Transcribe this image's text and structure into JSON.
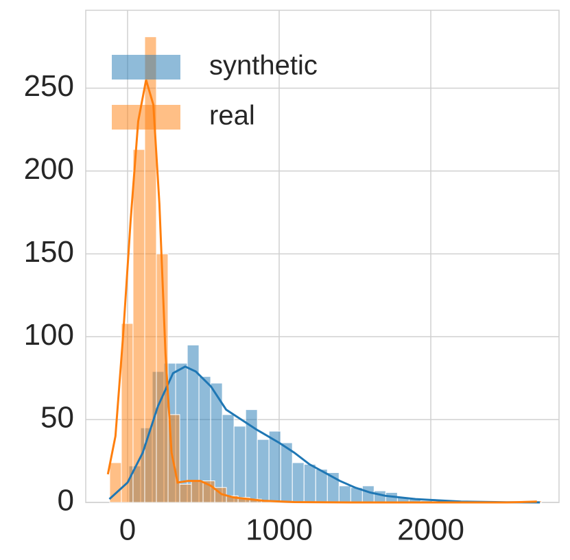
{
  "chart_data": {
    "type": "histogram",
    "xlim": [
      -276,
      2846
    ],
    "ylim": [
      0,
      297
    ],
    "xticks": [
      0,
      1000,
      2000
    ],
    "yticks": [
      0,
      50,
      100,
      150,
      200,
      250
    ],
    "grid": true,
    "legend": "upper left",
    "series": [
      {
        "name": "synthetic",
        "color": "#1f77b4",
        "bins": [
          9,
          86,
          163,
          240,
          317,
          394,
          471,
          548,
          625,
          702,
          779,
          856,
          933,
          1010,
          1087,
          1164,
          1241,
          1318,
          1395,
          1472,
          1549,
          1626,
          1703,
          1780,
          1857,
          1934,
          2011
        ],
        "values": [
          22,
          45,
          79,
          84,
          84,
          95,
          76,
          72,
          53,
          46,
          56,
          38,
          43,
          36,
          24,
          23,
          20,
          18,
          10,
          9,
          10,
          7,
          6,
          3,
          2,
          1
        ],
        "kde_x": [
          -120,
          0,
          100,
          200,
          300,
          380,
          450,
          550,
          650,
          750,
          850,
          1000,
          1100,
          1200,
          1300,
          1400,
          1500,
          1600,
          1700,
          1800,
          1900,
          2000,
          2200,
          2500,
          2720
        ],
        "kde_y": [
          2,
          12,
          30,
          58,
          78,
          82,
          79,
          70,
          56,
          50,
          44,
          36,
          30,
          23,
          18,
          13,
          9,
          6,
          4,
          3,
          2,
          1.5,
          0.5,
          0.1,
          0
        ]
      },
      {
        "name": "real",
        "color": "#ff7f0e",
        "bins": [
          -118,
          -41,
          36,
          113,
          190,
          267,
          344,
          421,
          498,
          575,
          652,
          729,
          806,
          883,
          960,
          1037,
          1114,
          1191,
          1268,
          1345,
          1422,
          1499,
          1576,
          1653,
          1730,
          1807,
          1884,
          1961,
          2038,
          2115,
          2192,
          2269,
          2346,
          2423,
          2500,
          2577,
          2654,
          2731
        ],
        "values": [
          24,
          108,
          213,
          281,
          150,
          53,
          11,
          13,
          13,
          9,
          4,
          3,
          2,
          1,
          0,
          0,
          0,
          0,
          0,
          0,
          0,
          0,
          0,
          0,
          0,
          0,
          0,
          0,
          0,
          0,
          0,
          0,
          0,
          0,
          0,
          0,
          1
        ],
        "kde_x": [
          -130,
          -80,
          -30,
          20,
          70,
          122,
          170,
          210,
          250,
          290,
          330,
          400,
          480,
          550,
          620,
          700,
          800,
          900,
          1100,
          1500,
          2000,
          2500,
          2700
        ],
        "kde_y": [
          17,
          40,
          100,
          170,
          230,
          255,
          240,
          180,
          90,
          30,
          12,
          13,
          13,
          10,
          5,
          3,
          2,
          1,
          0.2,
          0,
          0,
          0,
          0.5
        ]
      }
    ]
  }
}
